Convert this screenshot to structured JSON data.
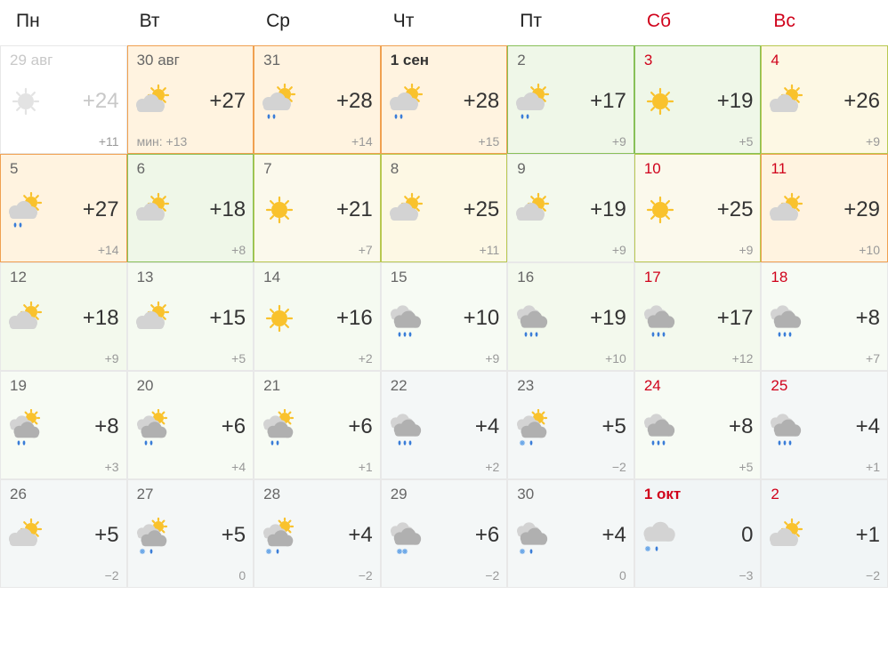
{
  "weekdays": [
    {
      "label": "Пн",
      "weekend": false
    },
    {
      "label": "Вт",
      "weekend": false
    },
    {
      "label": "Ср",
      "weekend": false
    },
    {
      "label": "Чт",
      "weekend": false
    },
    {
      "label": "Пт",
      "weekend": false
    },
    {
      "label": "Сб",
      "weekend": true
    },
    {
      "label": "Вс",
      "weekend": true
    }
  ],
  "colors": {
    "weekend_text": "#d0021b",
    "text_primary": "#333333",
    "text_secondary": "#666666",
    "text_muted": "#999999",
    "text_disabled": "#c8c8c8",
    "sun_fill": "#f9c22d",
    "cloud_dark": "#b0b0b0",
    "cloud_light": "#d3d3d3",
    "rain_drop": "#3a7dd8",
    "snow_flake": "#6aa7e8"
  },
  "cell_styles": {
    "disabled": {
      "border": "b-default",
      "bg": ""
    },
    "orange": {
      "border": "b-orange",
      "bg": "bg-orange"
    },
    "yellow": {
      "border": "b-yellowgreen",
      "bg": "bg-yellow"
    },
    "yellowsoft": {
      "border": "b-yellowgreen",
      "bg": "bg-yellowsoft"
    },
    "green_b": {
      "border": "b-green",
      "bg": "bg-greenlight"
    },
    "greenpale": {
      "border": "b-default",
      "bg": "bg-greenpale"
    },
    "greenlightest": {
      "border": "b-default",
      "bg": "bg-greenlightest"
    },
    "greenfade": {
      "border": "b-default",
      "bg": "bg-greenfade"
    },
    "bluegray": {
      "border": "b-default",
      "bg": "bg-bluegray"
    },
    "bluegraysoft": {
      "border": "b-default",
      "bg": "bg-bluegraysoft"
    }
  },
  "icons": {
    "sun": "sun",
    "cloud_sun": "cloud_sun",
    "cloud_sun_rain": "cloud_sun_rain",
    "cloud_rain": "cloud_rain",
    "cloud_sun_snow": "cloud_sun_snow",
    "cloud_snowrain": "cloud_snowrain",
    "cloud_sun_cloud_rain": "cloud_sun_cloud_rain",
    "cloud_sun_cloud_snowrain": "cloud_sun_cloud_snowrain",
    "cloud_cloud_rain": "cloud_cloud_rain",
    "cloud_cloud_snow": "cloud_cloud_snow",
    "cloud_cloud_snowrain": "cloud_cloud_snowrain"
  },
  "days": [
    {
      "date": "29 авг",
      "weekend": false,
      "disabled": true,
      "icon": "sun",
      "high": "+24",
      "low": "+11",
      "style": "disabled"
    },
    {
      "date": "30 авг",
      "weekend": false,
      "icon": "cloud_sun",
      "high": "+27",
      "low": "+13",
      "low_prefix": "мин: ",
      "style": "orange"
    },
    {
      "date": "31",
      "weekend": false,
      "icon": "cloud_sun_rain",
      "high": "+28",
      "low": "+14",
      "style": "orange"
    },
    {
      "date": "1 сен",
      "weekend": false,
      "bold": true,
      "icon": "cloud_sun_rain",
      "high": "+28",
      "low": "+15",
      "style": "orange"
    },
    {
      "date": "2",
      "weekend": false,
      "icon": "cloud_sun_rain",
      "high": "+17",
      "low": "+9",
      "style": "green_b"
    },
    {
      "date": "3",
      "weekend": true,
      "icon": "sun",
      "high": "+19",
      "low": "+5",
      "style": "green_b"
    },
    {
      "date": "4",
      "weekend": true,
      "icon": "cloud_sun",
      "high": "+26",
      "low": "+9",
      "style": "yellow"
    },
    {
      "date": "5",
      "weekend": false,
      "icon": "cloud_sun_rain",
      "high": "+27",
      "low": "+14",
      "style": "orange"
    },
    {
      "date": "6",
      "weekend": false,
      "icon": "cloud_sun",
      "high": "+18",
      "low": "+8",
      "style": "green_b"
    },
    {
      "date": "7",
      "weekend": false,
      "icon": "sun",
      "high": "+21",
      "low": "+7",
      "style": "yellowsoft"
    },
    {
      "date": "8",
      "weekend": false,
      "icon": "cloud_sun",
      "high": "+25",
      "low": "+11",
      "style": "yellow"
    },
    {
      "date": "9",
      "weekend": false,
      "icon": "cloud_sun",
      "high": "+19",
      "low": "+9",
      "style": "greenpale"
    },
    {
      "date": "10",
      "weekend": true,
      "icon": "sun",
      "high": "+25",
      "low": "+9",
      "style": "yellowsoft"
    },
    {
      "date": "11",
      "weekend": true,
      "icon": "cloud_sun",
      "high": "+29",
      "low": "+10",
      "style": "orange"
    },
    {
      "date": "12",
      "weekend": false,
      "icon": "cloud_sun",
      "high": "+18",
      "low": "+9",
      "style": "greenpale"
    },
    {
      "date": "13",
      "weekend": false,
      "icon": "cloud_sun",
      "high": "+15",
      "low": "+5",
      "style": "greenlightest"
    },
    {
      "date": "14",
      "weekend": false,
      "icon": "sun",
      "high": "+16",
      "low": "+2",
      "style": "greenlightest"
    },
    {
      "date": "15",
      "weekend": false,
      "icon": "cloud_cloud_rain",
      "high": "+10",
      "low": "+9",
      "style": "greenfade"
    },
    {
      "date": "16",
      "weekend": false,
      "icon": "cloud_cloud_rain",
      "high": "+19",
      "low": "+10",
      "style": "greenpale"
    },
    {
      "date": "17",
      "weekend": true,
      "icon": "cloud_cloud_rain",
      "high": "+17",
      "low": "+12",
      "style": "greenpale"
    },
    {
      "date": "18",
      "weekend": true,
      "icon": "cloud_cloud_rain",
      "high": "+8",
      "low": "+7",
      "style": "greenfade"
    },
    {
      "date": "19",
      "weekend": false,
      "icon": "cloud_sun_cloud_rain",
      "high": "+8",
      "low": "+3",
      "style": "greenfade"
    },
    {
      "date": "20",
      "weekend": false,
      "icon": "cloud_sun_cloud_rain",
      "high": "+6",
      "low": "+4",
      "style": "greenfade"
    },
    {
      "date": "21",
      "weekend": false,
      "icon": "cloud_sun_cloud_rain",
      "high": "+6",
      "low": "+1",
      "style": "greenfade"
    },
    {
      "date": "22",
      "weekend": false,
      "icon": "cloud_cloud_rain",
      "high": "+4",
      "low": "+2",
      "style": "bluegraysoft"
    },
    {
      "date": "23",
      "weekend": false,
      "icon": "cloud_sun_cloud_snowrain",
      "high": "+5",
      "low": "−2",
      "style": "bluegraysoft"
    },
    {
      "date": "24",
      "weekend": true,
      "icon": "cloud_cloud_rain",
      "high": "+8",
      "low": "+5",
      "style": "greenfade"
    },
    {
      "date": "25",
      "weekend": true,
      "icon": "cloud_cloud_rain",
      "high": "+4",
      "low": "+1",
      "style": "bluegraysoft"
    },
    {
      "date": "26",
      "weekend": false,
      "icon": "cloud_sun",
      "high": "+5",
      "low": "−2",
      "style": "bluegraysoft"
    },
    {
      "date": "27",
      "weekend": false,
      "icon": "cloud_sun_cloud_snowrain",
      "high": "+5",
      "low": "0",
      "style": "bluegraysoft"
    },
    {
      "date": "28",
      "weekend": false,
      "icon": "cloud_sun_cloud_snowrain",
      "high": "+4",
      "low": "−2",
      "style": "bluegraysoft"
    },
    {
      "date": "29",
      "weekend": false,
      "icon": "cloud_cloud_snow",
      "high": "+6",
      "low": "−2",
      "style": "bluegraysoft"
    },
    {
      "date": "30",
      "weekend": false,
      "icon": "cloud_cloud_snowrain",
      "high": "+4",
      "low": "0",
      "style": "bluegraysoft"
    },
    {
      "date": "1 окт",
      "weekend": true,
      "bold": true,
      "icon": "cloud_snowrain",
      "high": "0",
      "low": "−3",
      "style": "bluegray"
    },
    {
      "date": "2",
      "weekend": true,
      "icon": "cloud_sun",
      "high": "+1",
      "low": "−2",
      "style": "bluegray"
    }
  ]
}
